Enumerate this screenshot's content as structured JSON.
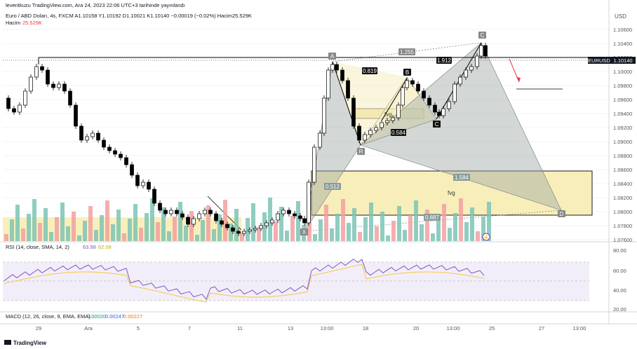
{
  "header": {
    "line1": "leventkuzu TradingView.com, Ara 24, 2023 22:06 UTC+3 tarihinde yayınlandı",
    "line2": "Euro / ABD Doları, 4s, FXCM  A1.10158  Y1.10192  D1.10021  K1.10140  −0.00019 (−0.02%)  Hacim25.529K",
    "volume_label": "Hacim",
    "volume_value": "25.529K"
  },
  "price_axis": {
    "currency": "USD",
    "ticks": [
      "1.10600",
      "1.10400",
      "1.10200",
      "1.10000",
      "1.09800",
      "1.09600",
      "1.09400",
      "1.09200",
      "1.09000",
      "1.08800",
      "1.08600",
      "1.08400",
      "1.08200",
      "1.08000",
      "1.07800",
      "1.07600"
    ],
    "symbol_tag": "EURUSD",
    "last_price": "1.10140"
  },
  "rsi": {
    "label": "RSI (14, close, SMA, 14, 2)",
    "v1": "63.98",
    "v2": "62.08",
    "ticks": [
      "80.00",
      "60.00",
      "40.00",
      "20.00"
    ]
  },
  "macd": {
    "label": "MACD (12, 26, close, 9, EMA, EMA)",
    "v1": "0.00020",
    "v2": "0.00247",
    "v3": "0.00227"
  },
  "time_axis": [
    "29",
    "Ara",
    "5",
    "7",
    "11",
    "13",
    "13:00",
    "18",
    "20",
    "13:00",
    "25",
    "27",
    "13:00"
  ],
  "footer": {
    "brand": "TradingView"
  },
  "chart_data": {
    "type": "candlestick",
    "symbol": "EURUSD",
    "timeframe": "4s",
    "ylim": [
      1.075,
      1.107
    ],
    "pattern_points": {
      "X": "X",
      "A": "A",
      "B": "B",
      "C": "C",
      "D": "D",
      "R": "R"
    },
    "ratios": [
      "1.255",
      "1.912",
      "0.819",
      "0.584",
      "1.584",
      "0.512",
      "0.887"
    ],
    "fvg_labels": [
      "fvg",
      "fvg"
    ],
    "colors": {
      "up": "#089981",
      "down": "#f23645",
      "candle": "#000000",
      "rsi": "#7e57c2",
      "rsi_ma": "#f5c842",
      "macd": "#2962ff",
      "signal": "#ff6d00",
      "pattern_fill": "#9aa5a0",
      "fvg_fill": "#f6ecb0"
    }
  }
}
